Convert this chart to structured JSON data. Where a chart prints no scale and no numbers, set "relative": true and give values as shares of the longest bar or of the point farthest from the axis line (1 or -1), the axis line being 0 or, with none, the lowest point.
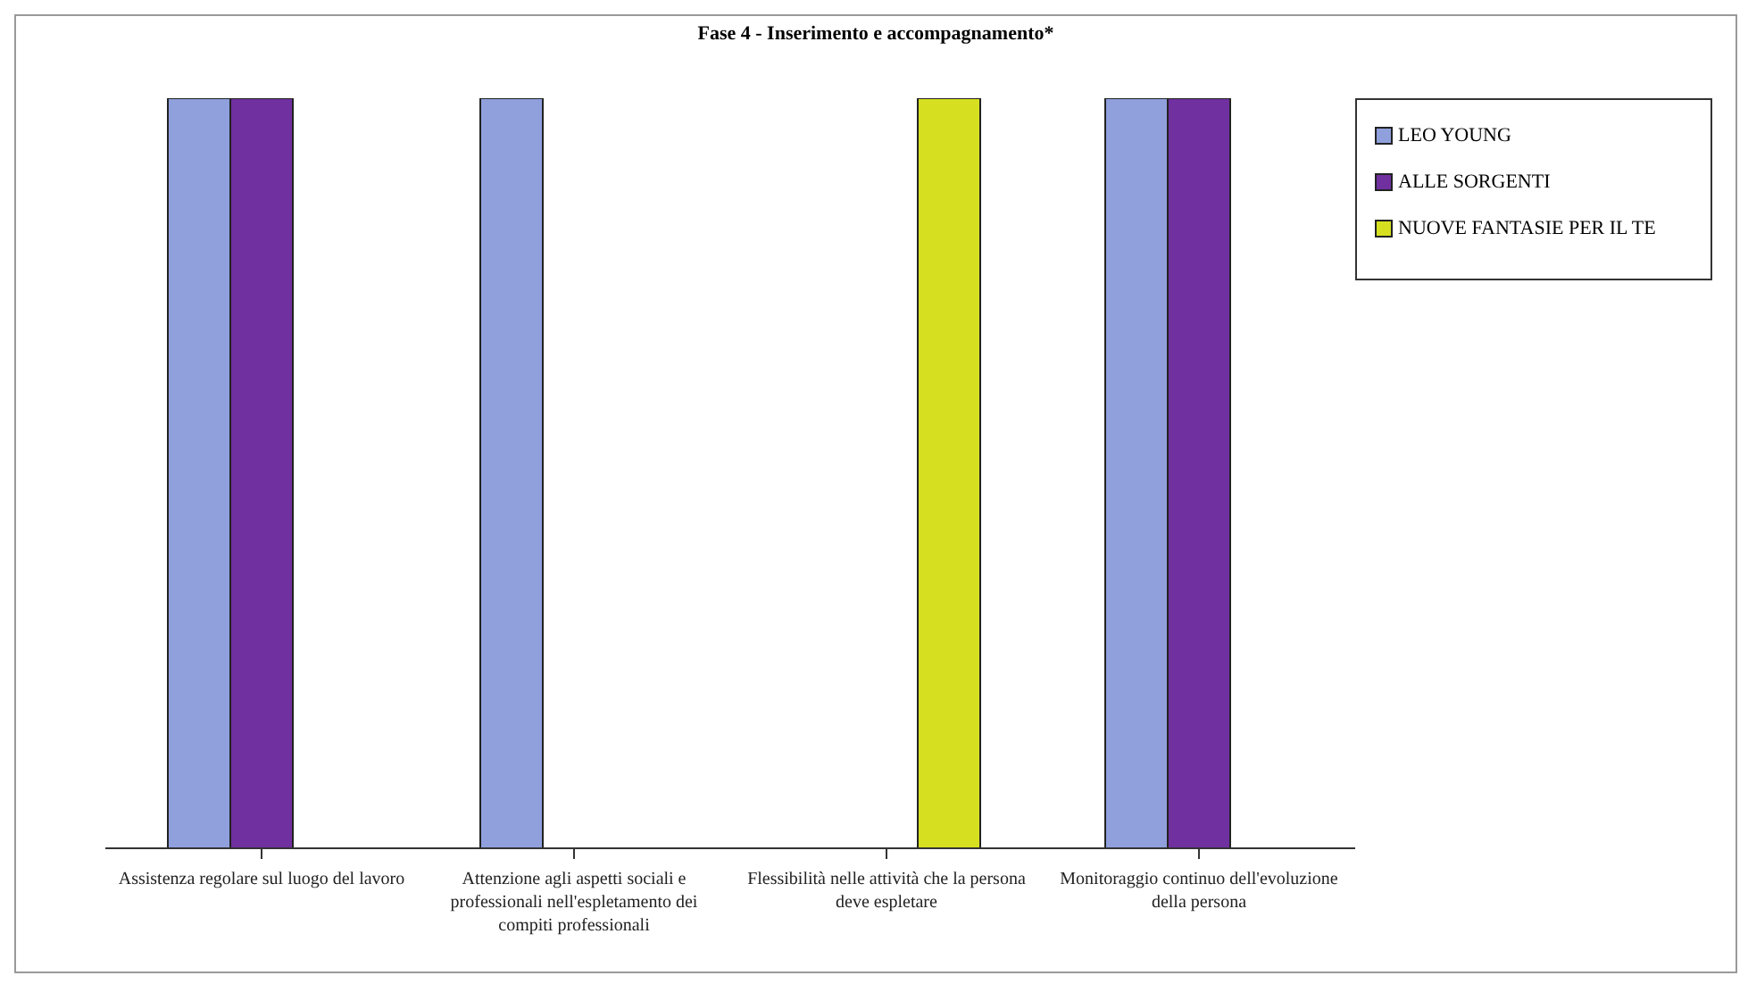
{
  "chart_data": {
    "type": "bar",
    "title": "Fase 4 - Inserimento e accompagnamento*",
    "relative": true,
    "categories": [
      "Assistenza regolare sul luogo del lavoro",
      "Attenzione agli aspetti sociali e professionali nell'espletamento dei compiti professionali",
      "Flessibilità nelle attività che la persona deve espletare",
      "Monitoraggio continuo dell'evoluzione della persona"
    ],
    "series": [
      {
        "name": "LEO YOUNG",
        "color": "#8fa0dc",
        "values": [
          1,
          1,
          0,
          1
        ]
      },
      {
        "name": "ALLE SORGENTI",
        "color": "#7030a0",
        "values": [
          1,
          0,
          0,
          1
        ]
      },
      {
        "name": "NUOVE FANTASIE PER IL TE",
        "color": "#d6e021",
        "values": [
          0,
          0,
          1,
          0
        ]
      }
    ],
    "legend": "top right",
    "grid": false
  }
}
